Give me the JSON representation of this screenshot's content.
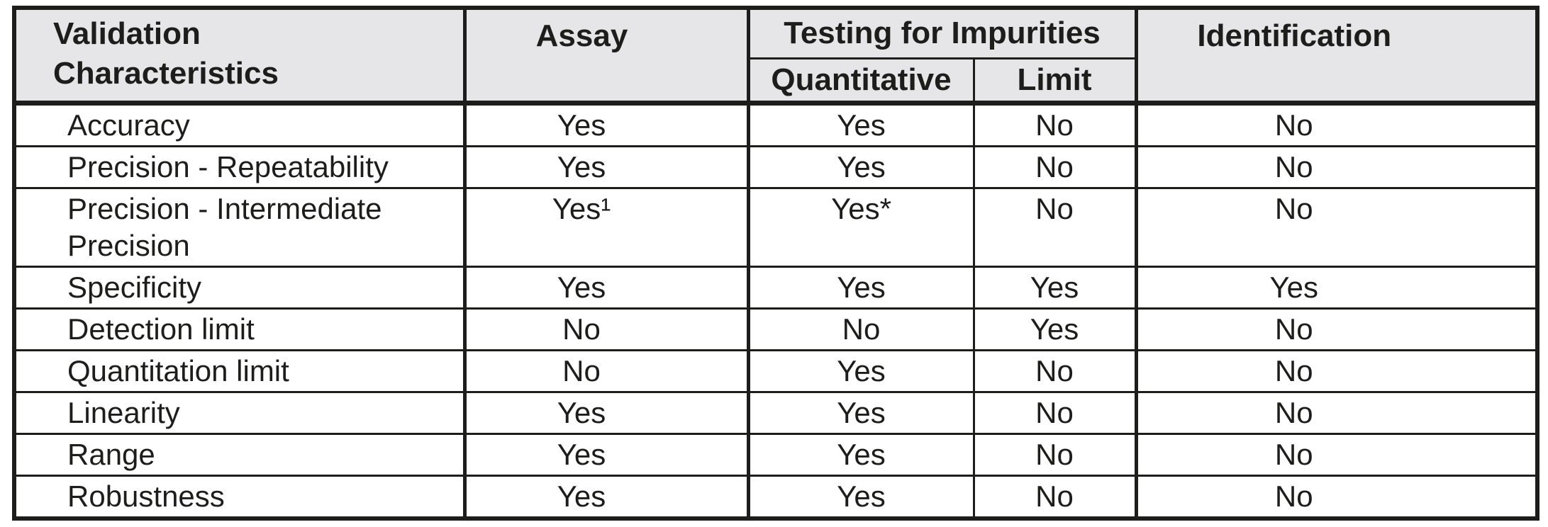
{
  "colors": {
    "header_bg": "#e6e6e8",
    "border": "#1d1d1b",
    "text": "#1d1d1b",
    "row_bg": "#ffffff"
  },
  "table": {
    "header": {
      "validation_characteristics": "Validation Characteristics",
      "assay": "Assay",
      "testing_for_impurities": "Testing for Impurities",
      "quantitative": "Quantitative",
      "limit": "Limit",
      "identification": "Identification"
    },
    "rows": [
      {
        "label": "Accuracy",
        "assay": "Yes",
        "quantitative": "Yes",
        "limit": "No",
        "identification": "No"
      },
      {
        "label": "Precision - Repeatability",
        "assay": "Yes",
        "quantitative": "Yes",
        "limit": "No",
        "identification": "No"
      },
      {
        "label": "Precision - Intermediate Precision",
        "assay": "Yes¹",
        "quantitative": "Yes*",
        "limit": "No",
        "identification": "No"
      },
      {
        "label": "Specificity",
        "assay": "Yes",
        "quantitative": "Yes",
        "limit": "Yes",
        "identification": "Yes"
      },
      {
        "label": "Detection limit",
        "assay": "No",
        "quantitative": "No",
        "limit": "Yes",
        "identification": "No"
      },
      {
        "label": "Quantitation limit",
        "assay": "No",
        "quantitative": "Yes",
        "limit": "No",
        "identification": "No"
      },
      {
        "label": "Linearity",
        "assay": "Yes",
        "quantitative": "Yes",
        "limit": "No",
        "identification": "No"
      },
      {
        "label": "Range",
        "assay": "Yes",
        "quantitative": "Yes",
        "limit": "No",
        "identification": "No"
      },
      {
        "label": "Robustness",
        "assay": "Yes",
        "quantitative": "Yes",
        "limit": "No",
        "identification": "No"
      }
    ]
  }
}
